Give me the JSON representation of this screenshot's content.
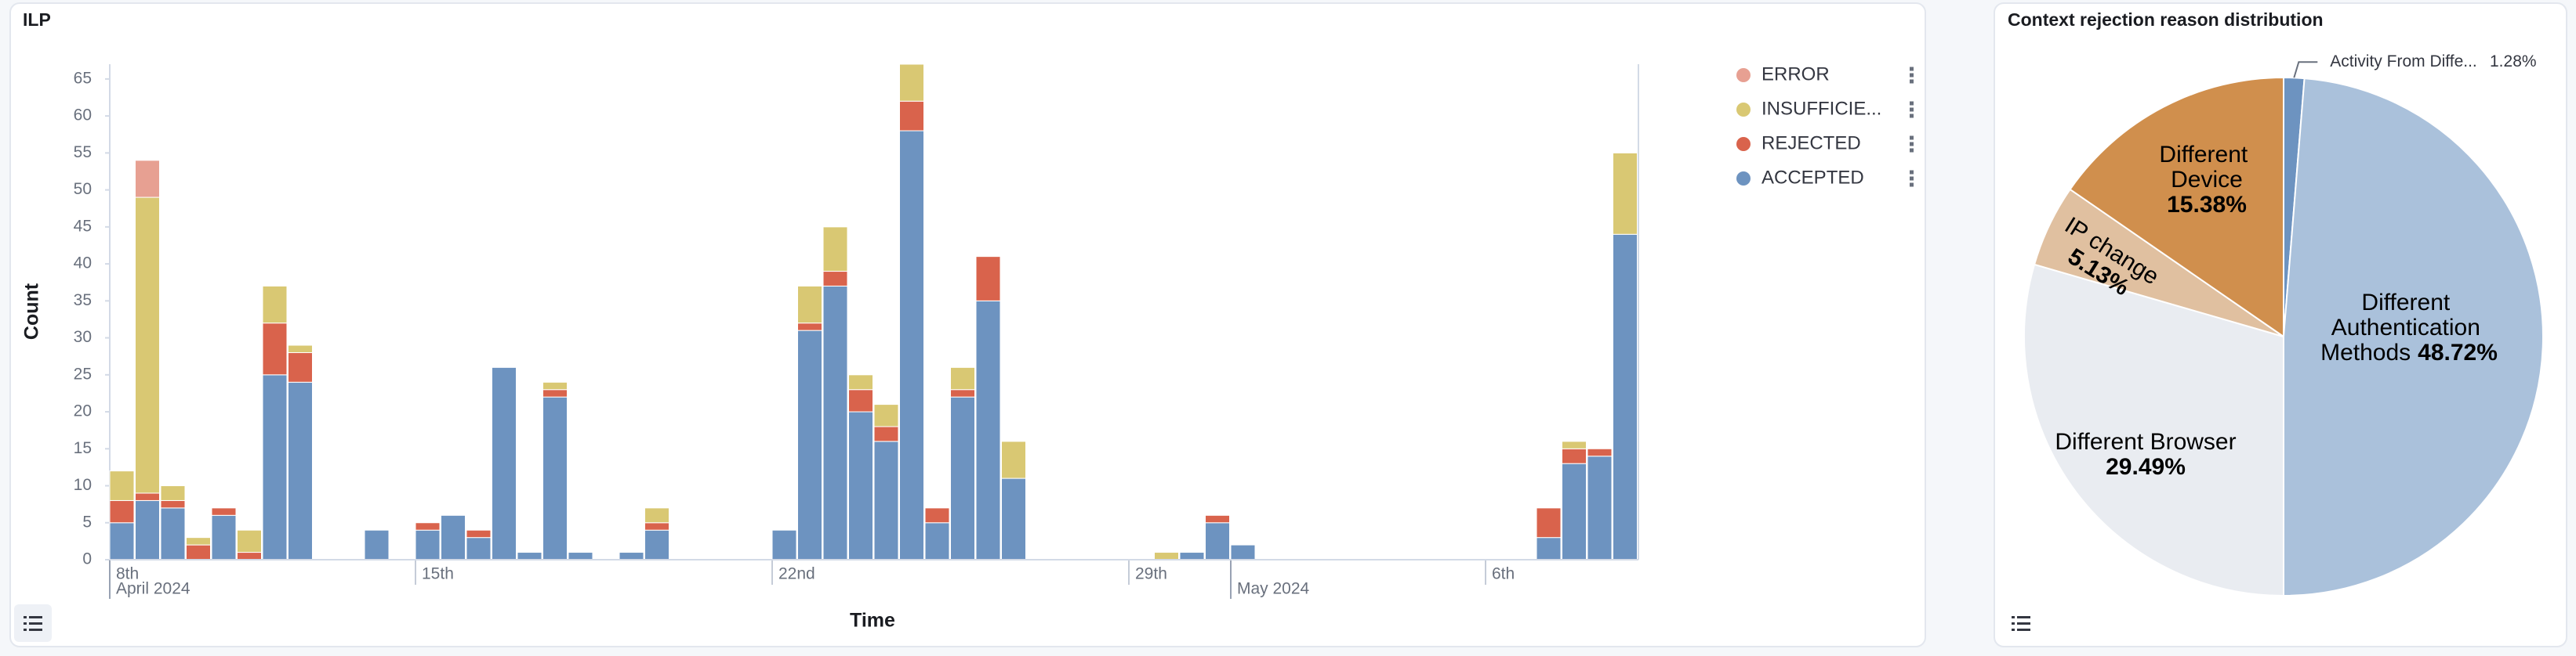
{
  "chart_data": [
    {
      "type": "bar",
      "title": "ILP",
      "x_label": "Time",
      "y_label": "Count",
      "stacked": true,
      "legend": "right",
      "x": [
        9,
        9.5,
        10,
        10.5,
        11,
        11.5,
        12,
        12.5,
        13,
        13.5,
        14,
        14.5,
        15,
        15.5,
        16,
        16.5,
        17,
        17.5,
        18,
        18.5,
        19,
        19.5,
        20,
        20.5,
        21,
        21.5,
        22,
        22.5,
        23,
        23.5,
        24,
        24.5,
        25,
        25.5,
        26,
        26.5,
        27,
        27.5,
        28,
        28.5,
        29,
        29.5,
        30,
        30.5,
        31,
        31.5,
        32,
        32.5,
        33,
        33.5,
        34,
        34.5,
        35,
        35.5,
        36,
        36.5,
        37,
        37.5,
        38,
        38.5
      ],
      "xlim": [
        9,
        39
      ],
      "xticks": [
        {
          "value": 8,
          "label": "8th"
        },
        {
          "value": 15,
          "label": "15th"
        },
        {
          "value": 22,
          "label": "22nd"
        },
        {
          "value": 29,
          "label": "29th"
        },
        {
          "value": 36,
          "label": "6th"
        }
      ],
      "x_major_ticks": [
        {
          "value": 8,
          "label": "April 2024"
        },
        {
          "value": 31,
          "label": "May 2024"
        }
      ],
      "ylim": [
        0,
        67
      ],
      "yticks": [
        0,
        5,
        10,
        15,
        20,
        25,
        30,
        35,
        40,
        45,
        50,
        55,
        60,
        65
      ],
      "series": [
        {
          "name": "ERROR",
          "color": "#e7a092",
          "values": [
            0,
            5,
            0,
            0,
            0,
            0,
            0,
            0,
            0,
            0,
            0,
            0,
            0,
            0,
            0,
            0,
            0,
            0,
            0,
            0,
            0,
            0,
            0,
            0,
            0,
            0,
            0,
            0,
            0,
            0,
            0,
            0,
            0,
            0,
            0,
            0,
            0,
            0,
            0,
            0,
            0,
            0,
            0,
            0,
            0,
            0,
            0,
            0,
            0,
            0,
            0,
            0,
            0,
            0,
            0,
            0,
            0,
            0,
            0,
            0
          ]
        },
        {
          "name": "INSUFFICIE...",
          "color": "#d9c873",
          "values": [
            4,
            40,
            2,
            1,
            0,
            3,
            5,
            1,
            0,
            0,
            0,
            0,
            0,
            0,
            0,
            0,
            0,
            1,
            0,
            0,
            0,
            2,
            0,
            0,
            0,
            0,
            0,
            5,
            6,
            2,
            3,
            5,
            0,
            3,
            0,
            5,
            0,
            0,
            0,
            0,
            0,
            1,
            0,
            0,
            0,
            0,
            0,
            0,
            0,
            0,
            0,
            0,
            0,
            0,
            0,
            0,
            0,
            1,
            0,
            11
          ]
        },
        {
          "name": "REJECTED",
          "color": "#d9634c",
          "values": [
            3,
            1,
            1,
            2,
            1,
            1,
            7,
            4,
            0,
            0,
            0,
            0,
            1,
            0,
            1,
            0,
            0,
            1,
            0,
            0,
            0,
            1,
            0,
            0,
            0,
            0,
            0,
            1,
            2,
            3,
            2,
            4,
            2,
            1,
            6,
            0,
            0,
            0,
            0,
            0,
            0,
            0,
            0,
            1,
            0,
            0,
            0,
            0,
            0,
            0,
            0,
            0,
            0,
            0,
            0,
            0,
            4,
            2,
            1,
            0
          ]
        },
        {
          "name": "ACCEPTED",
          "color": "#6d93c0",
          "values": [
            5,
            8,
            7,
            0,
            6,
            0,
            25,
            24,
            0,
            0,
            4,
            0,
            4,
            6,
            3,
            26,
            1,
            22,
            1,
            0,
            1,
            4,
            0,
            0,
            0,
            0,
            4,
            31,
            37,
            20,
            16,
            58,
            5,
            22,
            35,
            11,
            0,
            0,
            0,
            0,
            0,
            0,
            1,
            5,
            2,
            0,
            0,
            0,
            0,
            0,
            0,
            0,
            0,
            0,
            0,
            0,
            3,
            13,
            14,
            44
          ]
        }
      ]
    },
    {
      "type": "pie",
      "title": "Context rejection reason distribution",
      "categories": [
        "Activity From Diffe...",
        "Different Authentication Methods",
        "Different Browser",
        "IP change",
        "Different Device"
      ],
      "values": [
        1.28,
        48.72,
        29.49,
        5.13,
        15.38
      ],
      "value_labels": [
        "1.28%",
        "48.72%",
        "29.49%",
        "5.13%",
        "15.38%"
      ],
      "colors": [
        "#6d93c0",
        "#aac1db",
        "#e9ecf1",
        "#e0c0a0",
        "#d08f4d"
      ]
    }
  ]
}
